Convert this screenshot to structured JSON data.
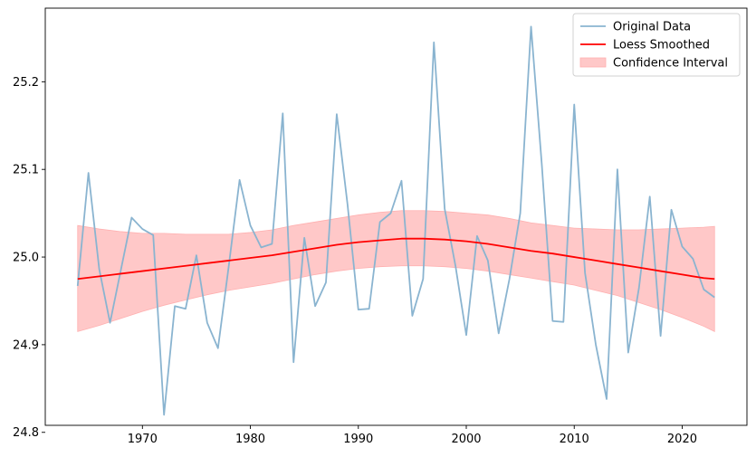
{
  "chart_data": {
    "type": "line",
    "title": "",
    "xlabel": "",
    "ylabel": "",
    "xlim": [
      1961,
      2026
    ],
    "ylim": [
      24.808,
      25.284
    ],
    "xticks": [
      1970,
      1980,
      1990,
      2000,
      2010,
      2020
    ],
    "yticks": [
      24.8,
      24.9,
      25.0,
      25.1,
      25.2
    ],
    "grid": false,
    "legend_position": "top-right",
    "legend": [
      "Original Data",
      "Loess Smoothed",
      "Confidence Interval"
    ],
    "colors": {
      "original": "#8ab4d0",
      "smoothed": "#ff0000",
      "ci": "#ffc8c8",
      "ci_edge": "#ffb0b0"
    },
    "series": [
      {
        "name": "Original Data",
        "x": [
          1964,
          1965,
          1966,
          1967,
          1968,
          1969,
          1970,
          1971,
          1972,
          1973,
          1974,
          1975,
          1976,
          1977,
          1978,
          1979,
          1980,
          1981,
          1982,
          1983,
          1984,
          1985,
          1986,
          1987,
          1988,
          1989,
          1990,
          1991,
          1992,
          1993,
          1994,
          1995,
          1996,
          1997,
          1998,
          1999,
          2000,
          2001,
          2002,
          2003,
          2004,
          2005,
          2006,
          2007,
          2008,
          2009,
          2010,
          2011,
          2012,
          2013,
          2014,
          2015,
          2016,
          2017,
          2018,
          2019,
          2020,
          2021,
          2022,
          2023
        ],
        "values": [
          24.967,
          25.096,
          24.986,
          24.925,
          24.985,
          25.045,
          25.032,
          25.025,
          24.82,
          24.944,
          24.941,
          25.002,
          24.925,
          24.896,
          24.99,
          25.088,
          25.036,
          25.011,
          25.015,
          25.164,
          24.88,
          25.022,
          24.944,
          24.971,
          25.163,
          25.06,
          24.94,
          24.941,
          25.04,
          25.05,
          25.087,
          24.933,
          24.975,
          25.245,
          25.055,
          24.99,
          24.911,
          25.024,
          24.996,
          24.913,
          24.975,
          25.05,
          25.263,
          25.105,
          24.927,
          24.926,
          25.174,
          24.982,
          24.9,
          24.838,
          25.1,
          24.891,
          24.965,
          25.069,
          24.91,
          25.054,
          25.012,
          24.998,
          24.963,
          24.954
        ]
      },
      {
        "name": "Loess Smoothed",
        "x": [
          1964,
          1966,
          1968,
          1970,
          1972,
          1974,
          1976,
          1978,
          1980,
          1982,
          1984,
          1986,
          1988,
          1990,
          1992,
          1994,
          1996,
          1998,
          2000,
          2002,
          2004,
          2006,
          2008,
          2010,
          2012,
          2014,
          2016,
          2018,
          2020,
          2022,
          2023
        ],
        "values": [
          24.975,
          24.978,
          24.981,
          24.984,
          24.987,
          24.99,
          24.993,
          24.996,
          24.999,
          25.002,
          25.006,
          25.01,
          25.014,
          25.017,
          25.019,
          25.021,
          25.021,
          25.02,
          25.018,
          25.015,
          25.011,
          25.007,
          25.004,
          25.0,
          24.996,
          24.992,
          24.988,
          24.984,
          24.98,
          24.976,
          24.975
        ]
      },
      {
        "name": "Confidence Interval",
        "x": [
          1964,
          1966,
          1968,
          1970,
          1972,
          1974,
          1976,
          1978,
          1980,
          1982,
          1984,
          1986,
          1988,
          1990,
          1992,
          1994,
          1996,
          1998,
          2000,
          2002,
          2004,
          2006,
          2008,
          2010,
          2012,
          2014,
          2016,
          2018,
          2020,
          2022,
          2023
        ],
        "lower": [
          24.915,
          24.922,
          24.93,
          24.938,
          24.945,
          24.951,
          24.957,
          24.962,
          24.966,
          24.97,
          24.975,
          24.98,
          24.984,
          24.987,
          24.989,
          24.99,
          24.99,
          24.989,
          24.987,
          24.984,
          24.98,
          24.976,
          24.972,
          24.968,
          24.962,
          24.956,
          24.948,
          24.94,
          24.931,
          24.921,
          24.915
        ],
        "upper": [
          25.036,
          25.032,
          25.029,
          25.027,
          25.027,
          25.026,
          25.026,
          25.026,
          25.028,
          25.031,
          25.036,
          25.04,
          25.044,
          25.048,
          25.051,
          25.053,
          25.053,
          25.052,
          25.05,
          25.048,
          25.044,
          25.039,
          25.036,
          25.033,
          25.032,
          25.031,
          25.031,
          25.032,
          25.033,
          25.034,
          25.035
        ]
      }
    ]
  }
}
